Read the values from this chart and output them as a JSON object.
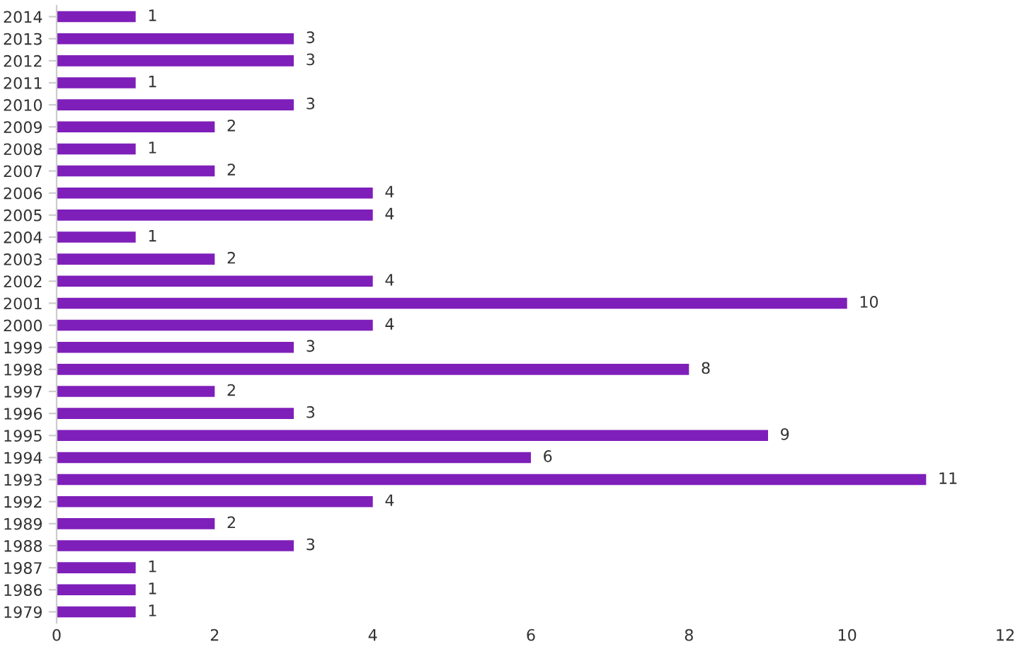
{
  "chart_data": {
    "type": "bar",
    "orientation": "horizontal",
    "categories": [
      "2014",
      "2013",
      "2012",
      "2011",
      "2010",
      "2009",
      "2008",
      "2007",
      "2006",
      "2005",
      "2004",
      "2003",
      "2002",
      "2001",
      "2000",
      "1999",
      "1998",
      "1997",
      "1996",
      "1995",
      "1994",
      "1993",
      "1992",
      "1989",
      "1988",
      "1987",
      "1986",
      "1979"
    ],
    "values": [
      1,
      3,
      3,
      1,
      3,
      2,
      1,
      2,
      4,
      4,
      1,
      2,
      4,
      10,
      4,
      3,
      8,
      2,
      3,
      9,
      6,
      11,
      4,
      2,
      3,
      1,
      1,
      1
    ],
    "color": "#7e1fba",
    "xlim": [
      0,
      12
    ],
    "xticks": [
      0,
      2,
      4,
      6,
      8,
      10,
      12
    ],
    "data_labels": true,
    "grid": false,
    "legend": false
  }
}
